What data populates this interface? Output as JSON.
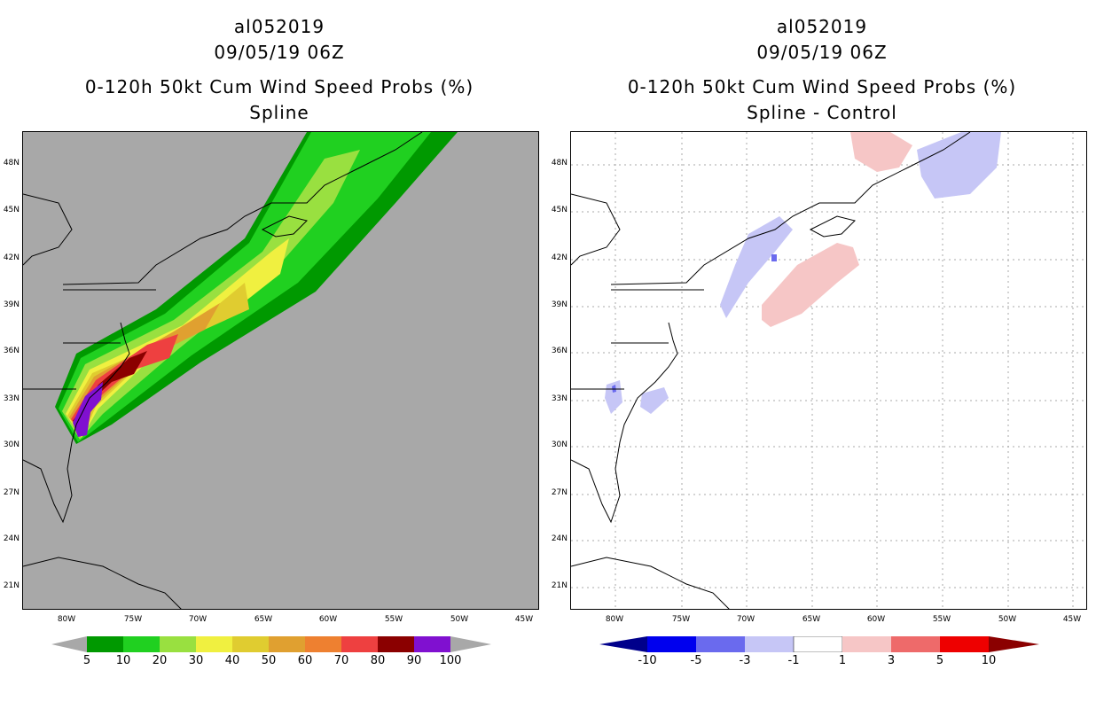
{
  "left_panel": {
    "title_lines": [
      "al052019",
      "09/05/19 06Z",
      "0-120h 50kt Cum Wind Speed Probs (%)",
      "Spline"
    ],
    "colorbar": {
      "labels": [
        "5",
        "10",
        "20",
        "30",
        "40",
        "50",
        "60",
        "70",
        "80",
        "90",
        "100"
      ],
      "colors": [
        "#a8a8a8",
        "#009900",
        "#20d020",
        "#99e040",
        "#f0f040",
        "#e0cc30",
        "#e0a030",
        "#ee8030",
        "#ee4040",
        "#8b0000",
        "#8010d0",
        "#a8a8a8"
      ]
    }
  },
  "right_panel": {
    "title_lines": [
      "al052019",
      "09/05/19 06Z",
      "0-120h 50kt Cum Wind Speed Probs (%)",
      "Spline - Control"
    ],
    "colorbar": {
      "labels": [
        "-10",
        "-5",
        "-3",
        "-1",
        "1",
        "3",
        "5",
        "10"
      ],
      "colors": [
        "#00008b",
        "#0000ee",
        "#6a6aee",
        "#c6c6f6",
        "#ffffff",
        "#f6c6c6",
        "#ee6a6a",
        "#ee0000",
        "#8b0000"
      ]
    }
  },
  "axes": {
    "lat_labels": [
      "48N",
      "45N",
      "42N",
      "39N",
      "36N",
      "33N",
      "30N",
      "27N",
      "24N",
      "21N"
    ],
    "lon_labels": [
      "80W",
      "75W",
      "70W",
      "65W",
      "60W",
      "55W",
      "50W",
      "45W"
    ]
  }
}
